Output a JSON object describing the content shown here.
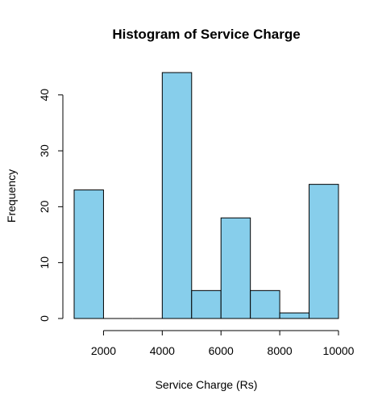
{
  "chart_data": {
    "type": "bar",
    "subtype": "histogram",
    "title": "Histogram of Service Charge",
    "xlabel": "Service Charge (Rs)",
    "ylabel": "Frequency",
    "bins": [
      {
        "start": 1000,
        "end": 2000,
        "count": 23
      },
      {
        "start": 2000,
        "end": 3000,
        "count": 0
      },
      {
        "start": 3000,
        "end": 4000,
        "count": 0
      },
      {
        "start": 4000,
        "end": 5000,
        "count": 44
      },
      {
        "start": 5000,
        "end": 6000,
        "count": 5
      },
      {
        "start": 6000,
        "end": 7000,
        "count": 18
      },
      {
        "start": 7000,
        "end": 8000,
        "count": 5
      },
      {
        "start": 8000,
        "end": 9000,
        "count": 1
      },
      {
        "start": 9000,
        "end": 10000,
        "count": 24
      }
    ],
    "xlim": [
      1000,
      10000
    ],
    "ylim": [
      0,
      44
    ],
    "xticks": [
      2000,
      4000,
      6000,
      8000,
      10000
    ],
    "xtick_labels": [
      "2000",
      "4000",
      "6000",
      "8000",
      "10000"
    ],
    "yticks": [
      0,
      10,
      20,
      30,
      40
    ],
    "ytick_labels": [
      "0",
      "10",
      "20",
      "30",
      "40"
    ],
    "bar_color": "#87CEEB",
    "edge_color": "#000000",
    "grid": false
  }
}
